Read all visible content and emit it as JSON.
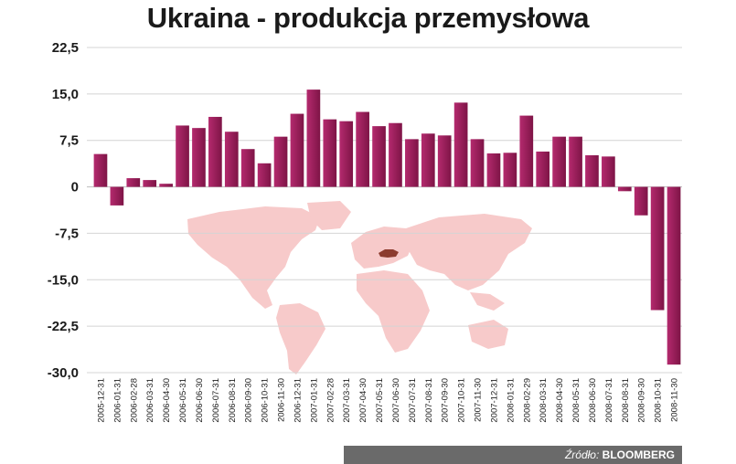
{
  "chart_data": {
    "type": "bar",
    "title": "Ukraina - produkcja przemysłowa",
    "xlabel": "",
    "ylabel": "",
    "ylim": [
      -30,
      22.5
    ],
    "yticks": [
      "22,5",
      "15,0",
      "7,5",
      "0",
      "-7,5",
      "-15,0",
      "-22,5",
      "-30,0"
    ],
    "ytick_values": [
      22.5,
      15,
      7.5,
      0,
      -7.5,
      -15,
      -22.5,
      -30
    ],
    "grid": true,
    "bar_color": "#9b1d5b",
    "categories": [
      "2005-12-31",
      "2006-01-31",
      "2006-02-28",
      "2006-03-31",
      "2006-04-30",
      "2006-05-31",
      "2006-06-30",
      "2006-07-31",
      "2006-08-31",
      "2006-09-30",
      "2006-10-31",
      "2006-11-30",
      "2006-12-31",
      "2007-01-31",
      "2007-02-28",
      "2007-03-31",
      "2007-04-30",
      "2007-05-31",
      "2007-06-30",
      "2007-07-31",
      "2007-08-31",
      "2007-09-30",
      "2007-10-31",
      "2007-11-30",
      "2007-12-31",
      "2008-01-31",
      "2008-02-29",
      "2008-03-31",
      "2008-04-30",
      "2008-05-31",
      "2008-06-30",
      "2008-07-31",
      "2008-08-31",
      "2008-09-30",
      "2008-10-31",
      "2008-11-30"
    ],
    "values": [
      5.3,
      -3.0,
      1.4,
      1.1,
      0.5,
      9.9,
      9.5,
      11.3,
      8.9,
      6.1,
      3.8,
      8.1,
      11.8,
      15.7,
      10.9,
      10.6,
      12.1,
      9.8,
      10.3,
      7.7,
      8.6,
      8.3,
      13.6,
      7.7,
      5.4,
      5.5,
      11.5,
      5.7,
      8.1,
      8.1,
      5.1,
      4.9,
      -0.7,
      -4.6,
      -19.9,
      -28.7
    ]
  },
  "source": {
    "label": "Źródło:",
    "name": "BLOOMBERG"
  },
  "map": {
    "highlight_color": "#8c3b2e",
    "land_color": "#f7c9c9"
  }
}
